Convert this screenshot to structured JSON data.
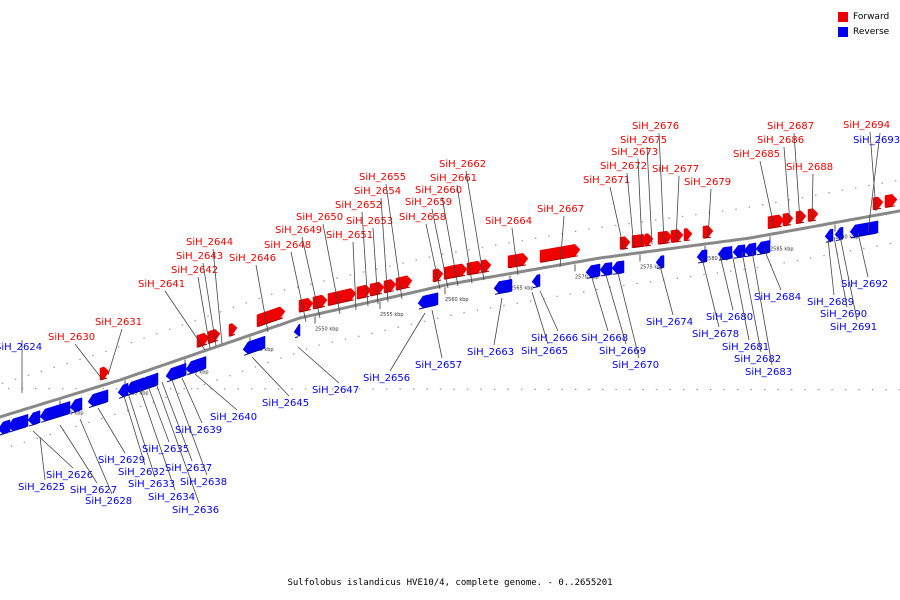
{
  "title": "Sulfolobus islandicus HVE10/4, complete genome. - 0..2655201",
  "legend": {
    "forward": {
      "label": "Forward",
      "color": "#ee0000"
    },
    "reverse": {
      "label": "Reverse",
      "color": "#0000ee"
    }
  },
  "colors": {
    "forward": "#ee0000",
    "reverse": "#0000ee",
    "backbone": "#888888",
    "ticks": "#000000",
    "leader": "#444444"
  },
  "scale_labels": [
    "2530 kbp",
    "2535 kbp",
    "2540 kbp",
    "2545 kbp",
    "2550 kbp",
    "2555 kbp",
    "2560 kbp",
    "2565 kbp",
    "2570 kbp",
    "2575 kbp",
    "2580 kbp",
    "2585 kbp",
    "2590 kbp"
  ],
  "genes": [
    {
      "id": "SiH_2624",
      "strand": "reverse"
    },
    {
      "id": "SiH_2625",
      "strand": "reverse"
    },
    {
      "id": "SiH_2626",
      "strand": "reverse"
    },
    {
      "id": "SiH_2627",
      "strand": "reverse"
    },
    {
      "id": "SiH_2628",
      "strand": "reverse"
    },
    {
      "id": "SiH_2629",
      "strand": "reverse"
    },
    {
      "id": "SiH_2630",
      "strand": "forward"
    },
    {
      "id": "SiH_2631",
      "strand": "forward"
    },
    {
      "id": "SiH_2632",
      "strand": "reverse"
    },
    {
      "id": "SiH_2633",
      "strand": "reverse"
    },
    {
      "id": "SiH_2634",
      "strand": "reverse"
    },
    {
      "id": "SiH_2635",
      "strand": "reverse"
    },
    {
      "id": "SiH_2636",
      "strand": "reverse"
    },
    {
      "id": "SiH_2637",
      "strand": "reverse"
    },
    {
      "id": "SiH_2638",
      "strand": "reverse"
    },
    {
      "id": "SiH_2639",
      "strand": "reverse"
    },
    {
      "id": "SiH_2640",
      "strand": "reverse"
    },
    {
      "id": "SiH_2641",
      "strand": "forward"
    },
    {
      "id": "SiH_2642",
      "strand": "forward"
    },
    {
      "id": "SiH_2643",
      "strand": "forward"
    },
    {
      "id": "SiH_2644",
      "strand": "forward"
    },
    {
      "id": "SiH_2645",
      "strand": "reverse"
    },
    {
      "id": "SiH_2646",
      "strand": "forward"
    },
    {
      "id": "SiH_2647",
      "strand": "reverse"
    },
    {
      "id": "SiH_2648",
      "strand": "forward"
    },
    {
      "id": "SiH_2649",
      "strand": "forward"
    },
    {
      "id": "SiH_2650",
      "strand": "forward"
    },
    {
      "id": "SiH_2651",
      "strand": "forward"
    },
    {
      "id": "SiH_2652",
      "strand": "forward"
    },
    {
      "id": "SiH_2653",
      "strand": "forward"
    },
    {
      "id": "SiH_2654",
      "strand": "forward"
    },
    {
      "id": "SiH_2655",
      "strand": "forward"
    },
    {
      "id": "SiH_2656",
      "strand": "reverse"
    },
    {
      "id": "SiH_2657",
      "strand": "reverse"
    },
    {
      "id": "SiH_2658",
      "strand": "forward"
    },
    {
      "id": "SiH_2659",
      "strand": "forward"
    },
    {
      "id": "SiH_2660",
      "strand": "forward"
    },
    {
      "id": "SiH_2661",
      "strand": "forward"
    },
    {
      "id": "SiH_2662",
      "strand": "forward"
    },
    {
      "id": "SiH_2663",
      "strand": "reverse"
    },
    {
      "id": "SiH_2664",
      "strand": "forward"
    },
    {
      "id": "SiH_2665",
      "strand": "reverse"
    },
    {
      "id": "SiH_2666",
      "strand": "reverse"
    },
    {
      "id": "SiH_2667",
      "strand": "forward"
    },
    {
      "id": "SiH_2668",
      "strand": "reverse"
    },
    {
      "id": "SiH_2669",
      "strand": "reverse"
    },
    {
      "id": "SiH_2670",
      "strand": "reverse"
    },
    {
      "id": "SiH_2671",
      "strand": "forward"
    },
    {
      "id": "SiH_2672",
      "strand": "forward"
    },
    {
      "id": "SiH_2673",
      "strand": "forward"
    },
    {
      "id": "SiH_2674",
      "strand": "reverse"
    },
    {
      "id": "SiH_2675",
      "strand": "forward"
    },
    {
      "id": "SiH_2676",
      "strand": "forward"
    },
    {
      "id": "SiH_2677",
      "strand": "forward"
    },
    {
      "id": "SiH_2678",
      "strand": "reverse"
    },
    {
      "id": "SiH_2679",
      "strand": "forward"
    },
    {
      "id": "SiH_2680",
      "strand": "reverse"
    },
    {
      "id": "SiH_2681",
      "strand": "reverse"
    },
    {
      "id": "SiH_2682",
      "strand": "reverse"
    },
    {
      "id": "SiH_2683",
      "strand": "reverse"
    },
    {
      "id": "SiH_2684",
      "strand": "reverse"
    },
    {
      "id": "SiH_2685",
      "strand": "forward"
    },
    {
      "id": "SiH_2686",
      "strand": "forward"
    },
    {
      "id": "SiH_2687",
      "strand": "forward"
    },
    {
      "id": "SiH_2688",
      "strand": "forward"
    },
    {
      "id": "SiH_2689",
      "strand": "reverse"
    },
    {
      "id": "SiH_2690",
      "strand": "reverse"
    },
    {
      "id": "SiH_2691",
      "strand": "reverse"
    },
    {
      "id": "SiH_2692",
      "strand": "reverse"
    },
    {
      "id": "SiH_2693",
      "strand": "reverse"
    },
    {
      "id": "SiH_2694",
      "strand": "forward"
    }
  ]
}
